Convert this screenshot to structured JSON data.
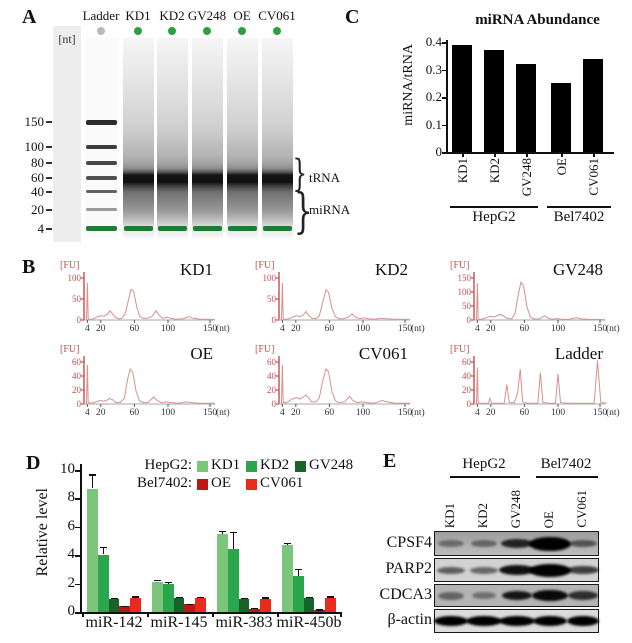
{
  "figure_labels": {
    "a": "A",
    "b": "B",
    "c": "C",
    "d": "D",
    "e": "E"
  },
  "panel_a": {
    "nt_unit": "[nt]",
    "lanes": [
      "Ladder",
      "KD1",
      "KD2",
      "GV248",
      "OE",
      "CV061"
    ],
    "size_markers": [
      "150",
      "100",
      "80",
      "60",
      "40",
      "20",
      "4"
    ],
    "bracket_labels": [
      "tRNA",
      "miRNA"
    ]
  },
  "panel_b": {
    "fu_label": "[FU]",
    "nt_axis_label": "(nt)",
    "x_tick_labels": [
      "4",
      "20",
      "60",
      "100",
      "150"
    ]
  },
  "panel_c": {
    "title": "miRNA Abundance",
    "ylabel": "miRNA/tRNA",
    "y_tick_labels": [
      "0.4",
      "0.3",
      "0.2",
      "0.1",
      "0"
    ],
    "group_labels": [
      "HepG2",
      "Bel7402"
    ]
  },
  "panel_d": {
    "ylabel": "Relative level",
    "y_tick_labels": [
      "10",
      "8",
      "6",
      "4",
      "2",
      "0"
    ],
    "legend_row1_prefix": "HepG2:",
    "legend_row2_prefix": "Bel7402:"
  },
  "panel_e": {
    "group_labels": [
      "HepG2",
      "Bel7402"
    ],
    "lanes": [
      "KD1",
      "KD2",
      "GV248",
      "OE",
      "CV061"
    ],
    "proteins": [
      "CPSF4",
      "PARP2",
      "CDCA3",
      "β-actin"
    ],
    "rows": [
      {
        "protein": "CPSF4",
        "intensities": [
          0.38,
          0.42,
          0.8,
          1.0,
          0.52
        ],
        "band_w": [
          26,
          26,
          32,
          42,
          28
        ],
        "band_h": [
          7,
          7,
          9,
          14,
          7
        ]
      },
      {
        "protein": "PARP2",
        "intensities": [
          0.55,
          0.5,
          0.92,
          1.0,
          0.7
        ],
        "band_w": [
          28,
          28,
          36,
          42,
          32
        ],
        "band_h": [
          7,
          7,
          10,
          13,
          8
        ]
      },
      {
        "protein": "CDCA3",
        "intensities": [
          0.45,
          0.38,
          0.88,
          0.95,
          0.75
        ],
        "band_w": [
          26,
          24,
          30,
          36,
          30
        ],
        "band_h": [
          8,
          7,
          9,
          11,
          9
        ]
      },
      {
        "protein": "β-actin",
        "intensities": [
          1,
          1,
          1,
          1,
          1
        ],
        "band_w": [
          34,
          36,
          36,
          34,
          32
        ],
        "band_h": [
          10,
          10,
          10,
          10,
          10
        ]
      }
    ]
  },
  "chart_data": [
    {
      "panel": "C",
      "type": "bar",
      "title": "miRNA Abundance",
      "ylabel": "miRNA/tRNA",
      "ylim": [
        0,
        0.4
      ],
      "y_ticks": [
        0.4,
        0.3,
        0.2,
        0.1,
        0
      ],
      "categories": [
        "KD1",
        "KD2",
        "GV248",
        "OE",
        "CV061"
      ],
      "values": [
        0.39,
        0.37,
        0.32,
        0.25,
        0.34
      ],
      "groups": [
        {
          "name": "HepG2",
          "members": [
            "KD1",
            "KD2",
            "GV248"
          ]
        },
        {
          "name": "Bel7402",
          "members": [
            "OE",
            "CV061"
          ]
        }
      ],
      "bar_color": "#000000"
    },
    {
      "panel": "B",
      "type": "line",
      "xlabel": "(nt)",
      "ylabel": "[FU]",
      "x_ticks": [
        4,
        20,
        60,
        100,
        150
      ],
      "trace_color": "#d9908e",
      "subplots": [
        {
          "name": "KD1",
          "y_ticks": [
            0,
            50,
            100
          ],
          "y_max": 100,
          "points": [
            [
              2,
              0
            ],
            [
              3,
              2
            ],
            [
              4,
              88
            ],
            [
              5,
              3
            ],
            [
              8,
              1
            ],
            [
              12,
              3
            ],
            [
              16,
              8
            ],
            [
              20,
              10
            ],
            [
              24,
              9
            ],
            [
              28,
              14
            ],
            [
              31,
              22
            ],
            [
              34,
              14
            ],
            [
              37,
              7
            ],
            [
              41,
              3
            ],
            [
              45,
              4
            ],
            [
              49,
              14
            ],
            [
              53,
              48
            ],
            [
              56,
              73
            ],
            [
              59,
              68
            ],
            [
              63,
              30
            ],
            [
              66,
              10
            ],
            [
              70,
              4
            ],
            [
              75,
              4
            ],
            [
              81,
              8
            ],
            [
              86,
              22
            ],
            [
              90,
              10
            ],
            [
              94,
              4
            ],
            [
              99,
              7
            ],
            [
              103,
              4
            ],
            [
              110,
              2
            ],
            [
              118,
              3
            ],
            [
              125,
              8
            ],
            [
              130,
              4
            ],
            [
              138,
              2
            ],
            [
              148,
              2
            ],
            [
              156,
              1
            ]
          ]
        },
        {
          "name": "KD2",
          "y_ticks": [
            0,
            50,
            100
          ],
          "y_max": 100,
          "points": [
            [
              2,
              0
            ],
            [
              3,
              2
            ],
            [
              4,
              88
            ],
            [
              5,
              3
            ],
            [
              9,
              1
            ],
            [
              13,
              4
            ],
            [
              17,
              8
            ],
            [
              21,
              10
            ],
            [
              25,
              8
            ],
            [
              29,
              12
            ],
            [
              32,
              20
            ],
            [
              35,
              12
            ],
            [
              39,
              4
            ],
            [
              44,
              3
            ],
            [
              48,
              10
            ],
            [
              52,
              42
            ],
            [
              56,
              72
            ],
            [
              59,
              66
            ],
            [
              63,
              28
            ],
            [
              67,
              8
            ],
            [
              71,
              3
            ],
            [
              77,
              3
            ],
            [
              83,
              7
            ],
            [
              87,
              15
            ],
            [
              91,
              7
            ],
            [
              96,
              3
            ],
            [
              101,
              5
            ],
            [
              106,
              3
            ],
            [
              114,
              2
            ],
            [
              122,
              4
            ],
            [
              128,
              3
            ],
            [
              138,
              2
            ],
            [
              148,
              2
            ],
            [
              156,
              1
            ]
          ]
        },
        {
          "name": "GV248",
          "y_ticks": [
            0,
            50,
            100,
            150
          ],
          "y_max": 150,
          "points": [
            [
              2,
              0
            ],
            [
              3,
              2
            ],
            [
              4,
              132
            ],
            [
              5,
              3
            ],
            [
              9,
              2
            ],
            [
              14,
              8
            ],
            [
              19,
              13
            ],
            [
              24,
              11
            ],
            [
              28,
              16
            ],
            [
              32,
              20
            ],
            [
              36,
              13
            ],
            [
              40,
              5
            ],
            [
              45,
              4
            ],
            [
              49,
              25
            ],
            [
              53,
              95
            ],
            [
              56,
              135
            ],
            [
              59,
              122
            ],
            [
              63,
              48
            ],
            [
              67,
              11
            ],
            [
              71,
              4
            ],
            [
              78,
              4
            ],
            [
              84,
              15
            ],
            [
              88,
              7
            ],
            [
              93,
              3
            ],
            [
              99,
              5
            ],
            [
              104,
              3
            ],
            [
              112,
              2
            ],
            [
              122,
              8
            ],
            [
              128,
              4
            ],
            [
              138,
              2
            ],
            [
              148,
              2
            ],
            [
              156,
              1
            ]
          ]
        },
        {
          "name": "OE",
          "y_ticks": [
            0,
            20,
            40,
            60
          ],
          "y_max": 60,
          "points": [
            [
              2,
              0
            ],
            [
              3,
              1
            ],
            [
              4,
              56
            ],
            [
              5,
              2
            ],
            [
              9,
              1
            ],
            [
              14,
              3
            ],
            [
              19,
              5
            ],
            [
              24,
              4
            ],
            [
              28,
              6
            ],
            [
              31,
              8
            ],
            [
              34,
              6
            ],
            [
              38,
              2
            ],
            [
              43,
              2
            ],
            [
              48,
              8
            ],
            [
              52,
              36
            ],
            [
              55,
              50
            ],
            [
              58,
              46
            ],
            [
              62,
              18
            ],
            [
              66,
              5
            ],
            [
              70,
              2
            ],
            [
              76,
              2
            ],
            [
              83,
              10
            ],
            [
              87,
              5
            ],
            [
              92,
              2
            ],
            [
              98,
              3
            ],
            [
              104,
              2
            ],
            [
              112,
              1
            ],
            [
              122,
              3
            ],
            [
              128,
              2
            ],
            [
              138,
              1
            ],
            [
              148,
              1
            ],
            [
              156,
              1
            ]
          ]
        },
        {
          "name": "CV061",
          "y_ticks": [
            0,
            20,
            40,
            60
          ],
          "y_max": 60,
          "points": [
            [
              2,
              0
            ],
            [
              3,
              1
            ],
            [
              4,
              56
            ],
            [
              5,
              2
            ],
            [
              9,
              2
            ],
            [
              13,
              5
            ],
            [
              17,
              8
            ],
            [
              21,
              9
            ],
            [
              25,
              7
            ],
            [
              29,
              10
            ],
            [
              32,
              13
            ],
            [
              35,
              9
            ],
            [
              39,
              3
            ],
            [
              44,
              3
            ],
            [
              48,
              9
            ],
            [
              52,
              33
            ],
            [
              56,
              50
            ],
            [
              59,
              46
            ],
            [
              63,
              18
            ],
            [
              67,
              5
            ],
            [
              71,
              2
            ],
            [
              78,
              3
            ],
            [
              84,
              11
            ],
            [
              88,
              5
            ],
            [
              93,
              2
            ],
            [
              99,
              3
            ],
            [
              105,
              2
            ],
            [
              113,
              1
            ],
            [
              123,
              5
            ],
            [
              129,
              3
            ],
            [
              138,
              1
            ],
            [
              148,
              1
            ],
            [
              156,
              1
            ]
          ]
        },
        {
          "name": "Ladder",
          "y_ticks": [
            0,
            20,
            40,
            60
          ],
          "y_max": 60,
          "points": [
            [
              2,
              0
            ],
            [
              3,
              1
            ],
            [
              4,
              52
            ],
            [
              5,
              2
            ],
            [
              8,
              1
            ],
            [
              17,
              1
            ],
            [
              19,
              8
            ],
            [
              21,
              1
            ],
            [
              28,
              1
            ],
            [
              36,
              1
            ],
            [
              39,
              28
            ],
            [
              42,
              2
            ],
            [
              48,
              2
            ],
            [
              52,
              16
            ],
            [
              55,
              50
            ],
            [
              58,
              3
            ],
            [
              64,
              1
            ],
            [
              76,
              1
            ],
            [
              79,
              45
            ],
            [
              82,
              2
            ],
            [
              90,
              1
            ],
            [
              97,
              1
            ],
            [
              100,
              43
            ],
            [
              103,
              2
            ],
            [
              112,
              1
            ],
            [
              125,
              1
            ],
            [
              143,
              1
            ],
            [
              147,
              62
            ],
            [
              151,
              2
            ],
            [
              158,
              1
            ]
          ]
        }
      ]
    },
    {
      "panel": "D",
      "type": "bar",
      "ylabel": "Relative level",
      "ylim": [
        0,
        10
      ],
      "y_ticks": [
        10,
        8,
        6,
        4,
        2,
        0
      ],
      "categories": [
        "miR-142",
        "miR-145",
        "miR-383",
        "miR-450b"
      ],
      "series": [
        {
          "name": "KD1",
          "cell_line": "HepG2",
          "color": "#7cc67b",
          "values": [
            8.7,
            2.15,
            5.5,
            4.7
          ],
          "errors": [
            1.0,
            0.12,
            0.2,
            0.15
          ],
          "sig": [
            "**",
            "**",
            "***",
            "***"
          ]
        },
        {
          "name": "KD2",
          "cell_line": "HepG2",
          "color": "#2aa74d",
          "values": [
            4.05,
            2.0,
            4.45,
            2.55
          ],
          "errors": [
            0.55,
            0.1,
            1.2,
            0.5
          ],
          "sig": [
            "*",
            "**",
            "*",
            "*"
          ]
        },
        {
          "name": "GV248",
          "cell_line": "HepG2",
          "color": "#176329",
          "values": [
            0.95,
            1.0,
            0.95,
            1.0
          ],
          "errors": [
            0.07,
            0.07,
            0.07,
            0.07
          ],
          "sig": [
            "",
            "",
            "",
            ""
          ]
        },
        {
          "name": "OE",
          "cell_line": "Bel7402",
          "color": "#b91814",
          "values": [
            0.4,
            0.55,
            0.25,
            0.15
          ],
          "errors": [
            0.05,
            0.05,
            0.04,
            0.03
          ],
          "sig": [
            "#",
            "##",
            "#",
            "###"
          ]
        },
        {
          "name": "CV061",
          "cell_line": "Bel7402",
          "color": "#e92a1c",
          "values": [
            1.0,
            1.0,
            0.95,
            1.0
          ],
          "errors": [
            0.1,
            0.08,
            0.08,
            0.1
          ],
          "sig": [
            "",
            "",
            "",
            ""
          ]
        }
      ]
    }
  ]
}
